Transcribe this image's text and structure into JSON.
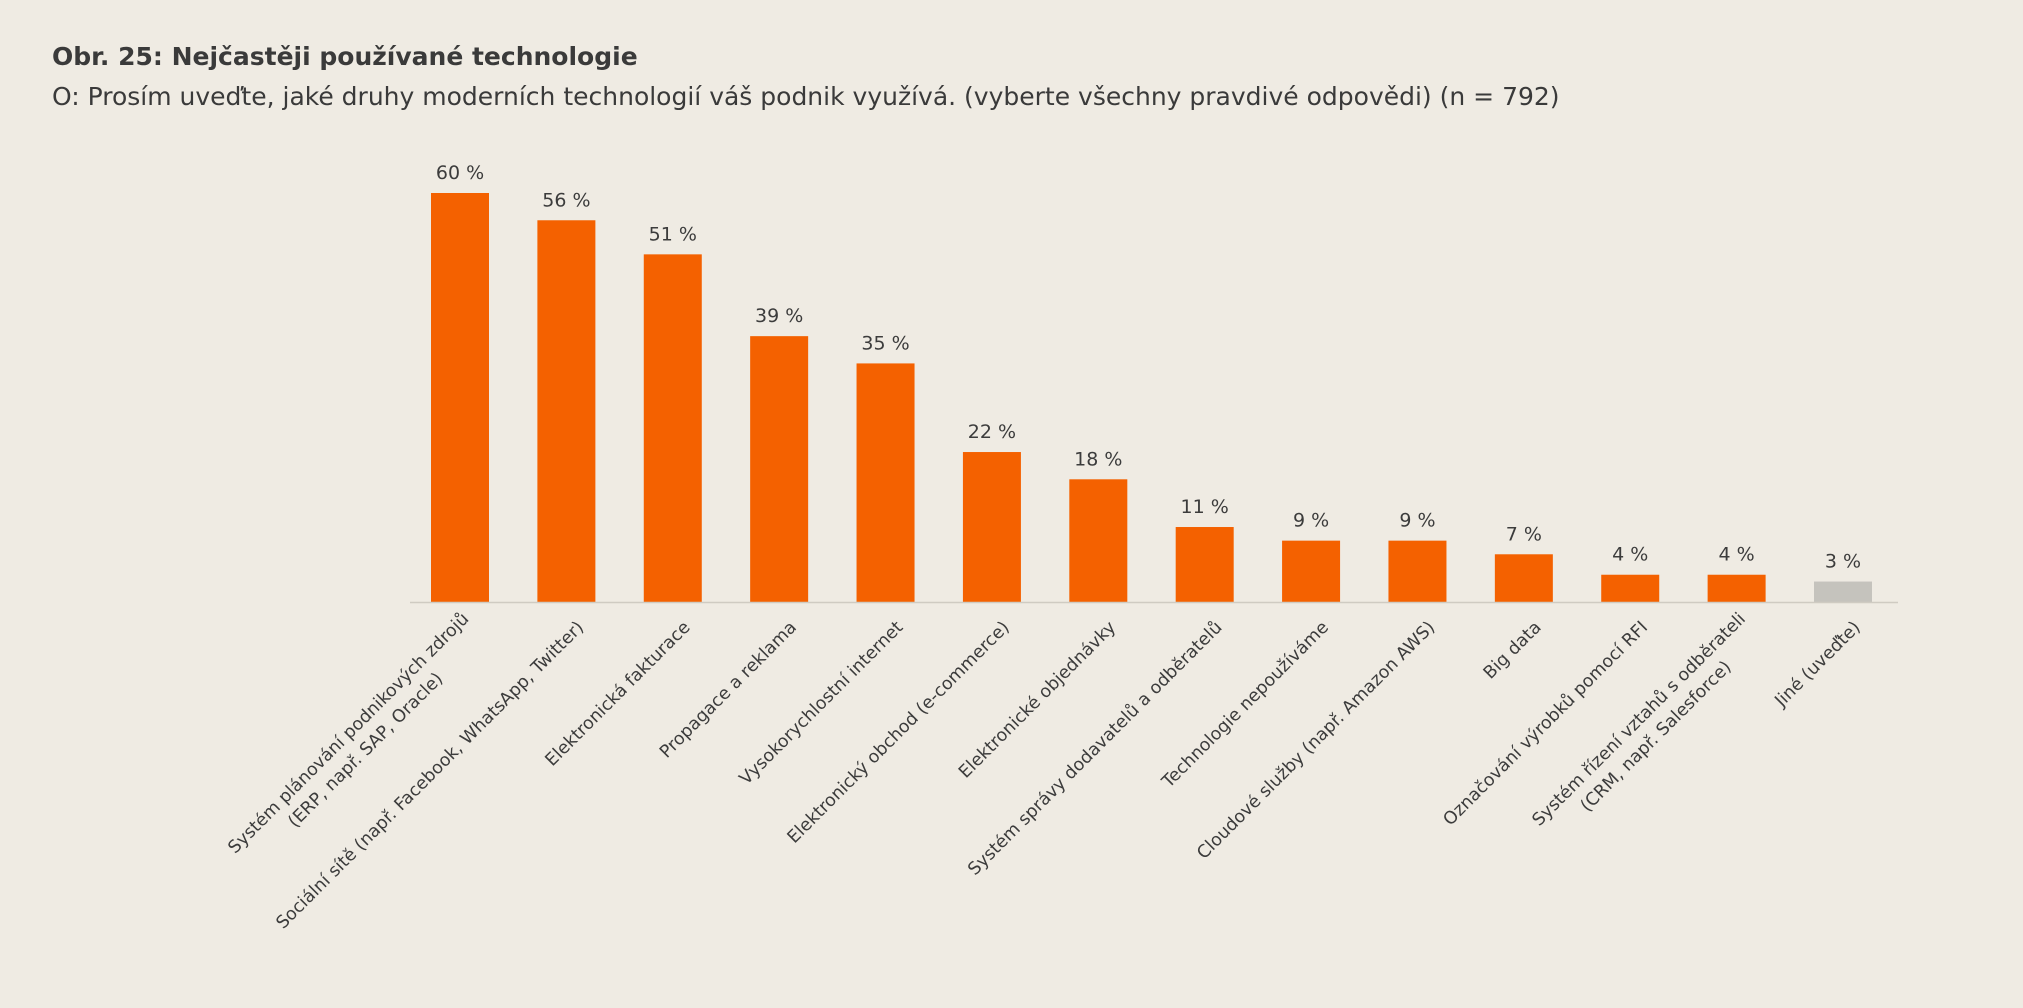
{
  "figure": {
    "title": "Obr. 25: Nejčastěji používané technologie",
    "subtitle": "O: Prosím uveďte, jaké druhy moderních technologií váš podnik využívá.  (vyberte všechny pravdivé odpovědi) (n = 792)"
  },
  "colors": {
    "primary": "#f46100",
    "other": "#c5c3bd",
    "background": "#efebe3",
    "axis": "#cfcbc2",
    "text": "#3c3c3c"
  },
  "chart_data": {
    "type": "bar",
    "title": "Obr. 25: Nejčastěji používané technologie",
    "subtitle": "O: Prosím uveďte, jaké druhy moderních technologií váš podnik využívá.  (vyberte všechny pravdivé odpovědi) (n = 792)",
    "xlabel": "",
    "ylabel": "",
    "ylim": [
      0,
      60
    ],
    "unit": "%",
    "grid": false,
    "legend": "none",
    "categories": [
      [
        "Systém plánování podnikových zdrojů",
        "(ERP, např. SAP, Oracle)"
      ],
      [
        "Sociální sítě (např. Facebook, WhatsApp, Twitter)"
      ],
      [
        "Elektronická fakturace"
      ],
      [
        "Propagace a reklama"
      ],
      [
        "Vysokorychlostní internet"
      ],
      [
        "Elektronický obchod (e-commerce)"
      ],
      [
        "Elektronické objednávky"
      ],
      [
        "Systém správy dodavatelů a odběratelů"
      ],
      [
        "Technologie nepoužíváme"
      ],
      [
        "Cloudové služby (např. Amazon AWS)"
      ],
      [
        "Big data"
      ],
      [
        "Označování výrobků pomocí RFI"
      ],
      [
        "Systém řízení vztahů s odběrateli",
        "(CRM, např. Salesforce)"
      ],
      [
        "Jiné (uveďte)"
      ]
    ],
    "values": [
      60,
      56,
      51,
      39,
      35,
      22,
      18,
      11,
      9,
      9,
      7,
      4,
      4,
      3
    ],
    "value_labels": [
      "60 %",
      "56 %",
      "51 %",
      "39 %",
      "35 %",
      "22 %",
      "18 %",
      "11 %",
      "9 %",
      "9 %",
      "7 %",
      "4 %",
      "4 %",
      "3 %"
    ],
    "bar_colors": [
      "#f46100",
      "#f46100",
      "#f46100",
      "#f46100",
      "#f46100",
      "#f46100",
      "#f46100",
      "#f46100",
      "#f46100",
      "#f46100",
      "#f46100",
      "#f46100",
      "#f46100",
      "#c5c3bd"
    ]
  }
}
